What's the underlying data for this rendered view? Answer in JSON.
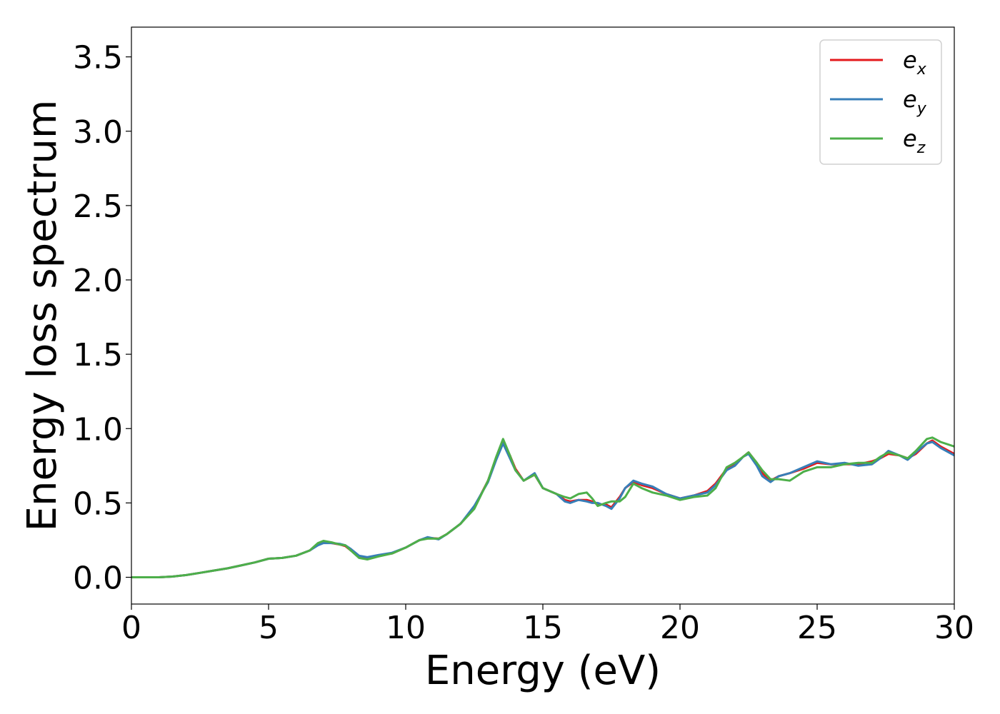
{
  "chart_data": {
    "type": "line",
    "xlabel": "Energy (eV)",
    "ylabel": "Energy loss spectrum",
    "xlim": [
      0,
      30
    ],
    "ylim": [
      -0.18,
      3.7
    ],
    "xticks": [
      0,
      5,
      10,
      15,
      20,
      25,
      30
    ],
    "yticks": [
      0.0,
      0.5,
      1.0,
      1.5,
      2.0,
      2.5,
      3.0,
      3.5
    ],
    "grid": false,
    "legend_position": "top-right",
    "series": [
      {
        "name": "e",
        "subscript": "x",
        "color": "#e41a1c",
        "x": [
          0,
          1,
          1.5,
          2,
          2.5,
          3,
          3.5,
          4,
          4.5,
          5,
          5.5,
          6,
          6.5,
          6.8,
          7,
          7.3,
          7.6,
          7.8,
          8,
          8.3,
          8.6,
          9,
          9.5,
          10,
          10.5,
          10.8,
          11.2,
          11.5,
          12,
          12.5,
          13,
          13.3,
          13.55,
          13.8,
          14,
          14.3,
          14.7,
          15,
          15.5,
          15.8,
          16,
          16.3,
          16.6,
          16.8,
          17,
          17.3,
          17.5,
          17.8,
          18,
          18.3,
          18.6,
          19,
          19.5,
          20,
          20.5,
          21,
          21.3,
          21.7,
          22,
          22.3,
          22.5,
          22.8,
          23,
          23.3,
          23.6,
          24,
          24.5,
          25,
          25.5,
          26,
          26.5,
          27,
          27.3,
          27.6,
          28,
          28.3,
          28.6,
          29,
          29.2,
          29.5,
          30
        ],
        "y": [
          0,
          0,
          0.005,
          0.015,
          0.03,
          0.045,
          0.06,
          0.08,
          0.1,
          0.125,
          0.13,
          0.145,
          0.18,
          0.22,
          0.235,
          0.23,
          0.22,
          0.21,
          0.18,
          0.14,
          0.13,
          0.145,
          0.16,
          0.2,
          0.25,
          0.265,
          0.26,
          0.29,
          0.36,
          0.47,
          0.65,
          0.8,
          0.91,
          0.82,
          0.73,
          0.65,
          0.69,
          0.6,
          0.56,
          0.52,
          0.51,
          0.52,
          0.52,
          0.51,
          0.49,
          0.49,
          0.47,
          0.54,
          0.6,
          0.64,
          0.62,
          0.6,
          0.56,
          0.53,
          0.55,
          0.58,
          0.63,
          0.73,
          0.76,
          0.81,
          0.84,
          0.77,
          0.7,
          0.65,
          0.68,
          0.7,
          0.73,
          0.77,
          0.76,
          0.76,
          0.76,
          0.78,
          0.8,
          0.83,
          0.82,
          0.8,
          0.83,
          0.9,
          0.92,
          0.88,
          0.83
        ]
      },
      {
        "name": "e",
        "subscript": "y",
        "color": "#377eb8",
        "x": [
          0,
          1,
          1.5,
          2,
          2.5,
          3,
          3.5,
          4,
          4.5,
          5,
          5.5,
          6,
          6.5,
          6.8,
          7,
          7.3,
          7.6,
          7.8,
          8,
          8.3,
          8.6,
          9,
          9.5,
          10,
          10.5,
          10.8,
          11.2,
          11.5,
          12,
          12.5,
          13,
          13.3,
          13.55,
          13.8,
          14,
          14.3,
          14.7,
          15,
          15.5,
          15.8,
          16,
          16.3,
          16.6,
          16.8,
          17,
          17.3,
          17.5,
          17.8,
          18,
          18.3,
          18.6,
          19,
          19.5,
          20,
          20.5,
          21,
          21.3,
          21.7,
          22,
          22.3,
          22.5,
          22.8,
          23,
          23.3,
          23.6,
          24,
          24.5,
          25,
          25.5,
          26,
          26.5,
          27,
          27.3,
          27.6,
          28,
          28.3,
          28.6,
          29,
          29.2,
          29.5,
          30
        ],
        "y": [
          0,
          0,
          0.005,
          0.015,
          0.03,
          0.045,
          0.06,
          0.08,
          0.1,
          0.125,
          0.13,
          0.145,
          0.18,
          0.215,
          0.23,
          0.23,
          0.225,
          0.215,
          0.19,
          0.145,
          0.135,
          0.15,
          0.165,
          0.2,
          0.25,
          0.27,
          0.255,
          0.29,
          0.36,
          0.48,
          0.64,
          0.79,
          0.9,
          0.8,
          0.72,
          0.65,
          0.7,
          0.6,
          0.56,
          0.51,
          0.5,
          0.52,
          0.51,
          0.5,
          0.5,
          0.48,
          0.46,
          0.53,
          0.6,
          0.65,
          0.63,
          0.61,
          0.56,
          0.53,
          0.55,
          0.57,
          0.62,
          0.72,
          0.75,
          0.81,
          0.83,
          0.75,
          0.68,
          0.64,
          0.68,
          0.7,
          0.74,
          0.78,
          0.76,
          0.77,
          0.75,
          0.76,
          0.8,
          0.85,
          0.82,
          0.79,
          0.84,
          0.9,
          0.91,
          0.87,
          0.82
        ]
      },
      {
        "name": "e",
        "subscript": "z",
        "color": "#4daf4a",
        "x": [
          0,
          1,
          1.5,
          2,
          2.5,
          3,
          3.5,
          4,
          4.5,
          5,
          5.5,
          6,
          6.5,
          6.8,
          7,
          7.3,
          7.6,
          7.8,
          8,
          8.3,
          8.6,
          9,
          9.5,
          10,
          10.5,
          10.8,
          11.2,
          11.5,
          12,
          12.5,
          13,
          13.3,
          13.55,
          13.8,
          14,
          14.3,
          14.7,
          15,
          15.5,
          15.8,
          16,
          16.3,
          16.6,
          16.8,
          17,
          17.3,
          17.5,
          17.8,
          18,
          18.3,
          18.6,
          19,
          19.5,
          20,
          20.5,
          21,
          21.3,
          21.7,
          22,
          22.3,
          22.5,
          22.8,
          23,
          23.3,
          23.6,
          24,
          24.5,
          25,
          25.5,
          26,
          26.5,
          27,
          27.3,
          27.6,
          28,
          28.3,
          28.6,
          29,
          29.2,
          29.5,
          30
        ],
        "y": [
          0,
          0,
          0.005,
          0.015,
          0.03,
          0.045,
          0.06,
          0.08,
          0.1,
          0.125,
          0.13,
          0.145,
          0.18,
          0.23,
          0.245,
          0.235,
          0.22,
          0.215,
          0.18,
          0.13,
          0.12,
          0.14,
          0.16,
          0.2,
          0.25,
          0.26,
          0.26,
          0.29,
          0.36,
          0.46,
          0.65,
          0.81,
          0.93,
          0.82,
          0.72,
          0.65,
          0.69,
          0.6,
          0.56,
          0.54,
          0.53,
          0.56,
          0.57,
          0.53,
          0.48,
          0.5,
          0.51,
          0.51,
          0.54,
          0.63,
          0.6,
          0.57,
          0.55,
          0.52,
          0.54,
          0.55,
          0.6,
          0.74,
          0.77,
          0.81,
          0.84,
          0.77,
          0.72,
          0.66,
          0.66,
          0.65,
          0.71,
          0.74,
          0.74,
          0.76,
          0.77,
          0.77,
          0.81,
          0.84,
          0.82,
          0.8,
          0.85,
          0.93,
          0.94,
          0.91,
          0.88
        ]
      }
    ]
  }
}
